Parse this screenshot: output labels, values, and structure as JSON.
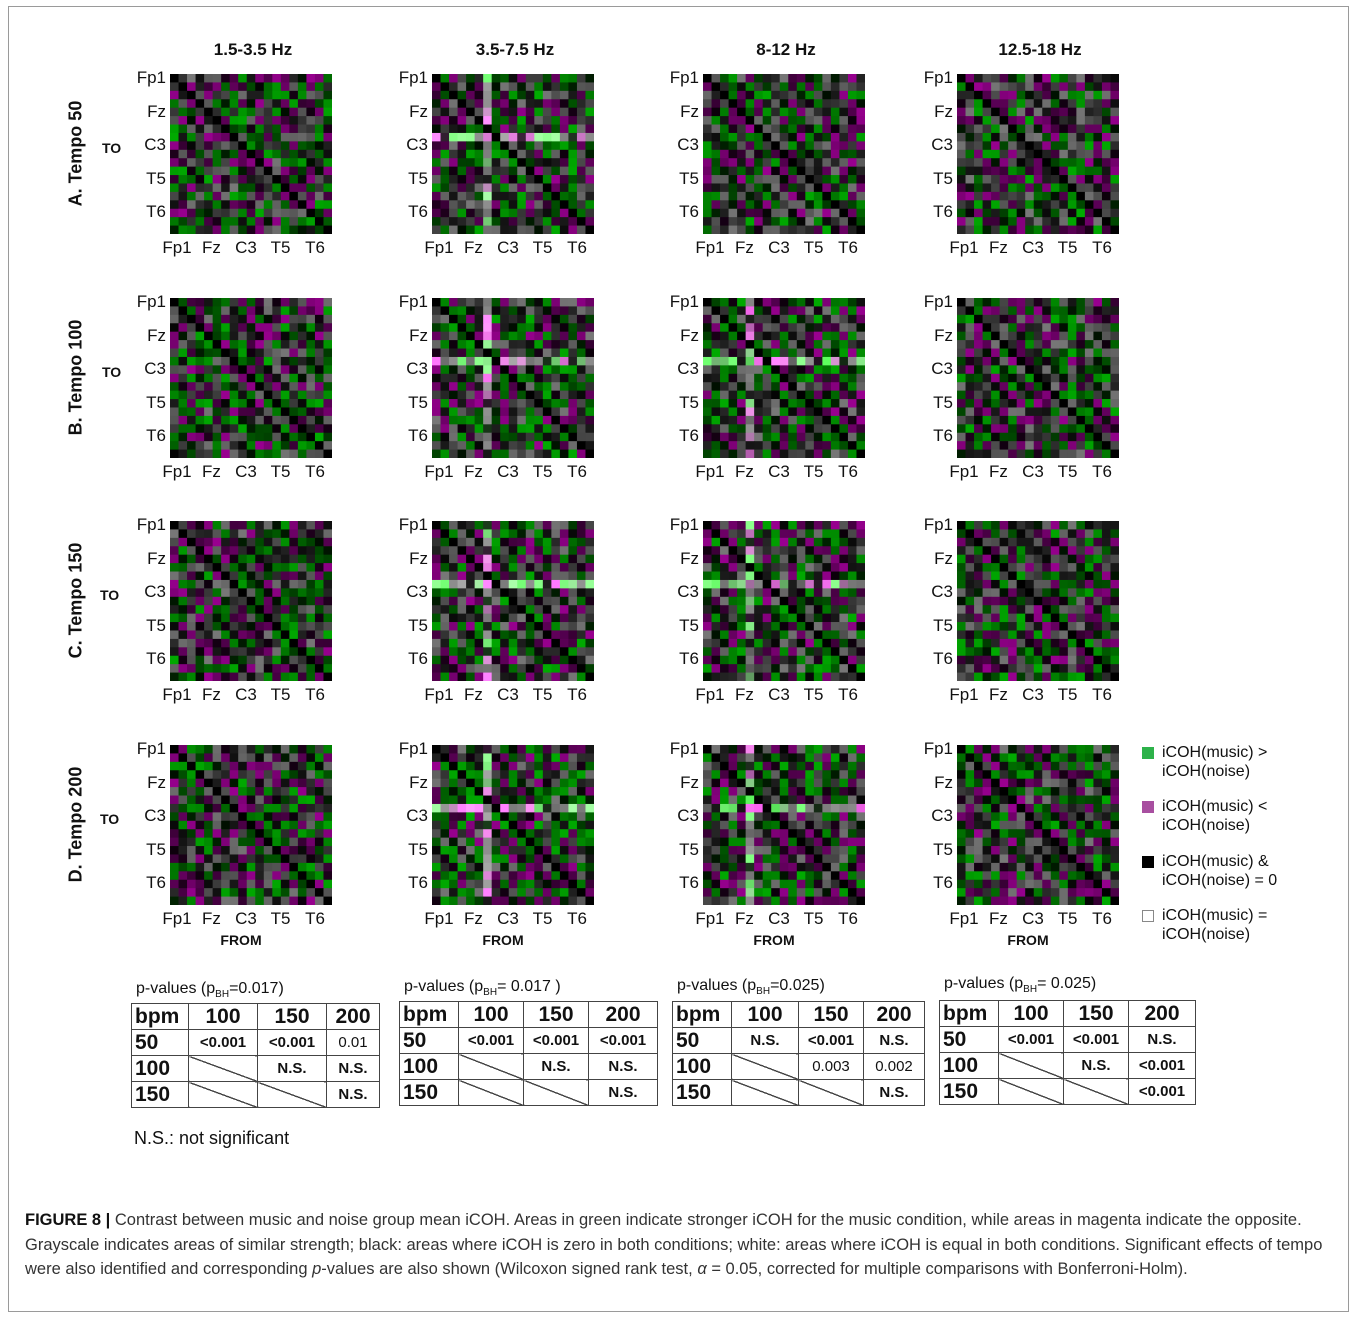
{
  "columns": [
    "1.5-3.5 Hz",
    "3.5-7.5 Hz",
    "8-12 Hz",
    "12.5-18 Hz"
  ],
  "rows": [
    "A. Tempo 50",
    "B. Tempo 100",
    "C. Tempo 150",
    "D. Tempo 200"
  ],
  "axis": {
    "to_label": "TO",
    "from_label": "FROM",
    "ticks": [
      "Fp1",
      "Fz",
      "C3",
      "T5",
      "T6"
    ]
  },
  "legend": [
    {
      "text": "iCOH(music) > iCOH(noise)",
      "color": "#2db24a",
      "border": "#2db24a"
    },
    {
      "text": "iCOH(music) < iCOH(noise)",
      "color": "#a84fa0",
      "border": "#a84fa0"
    },
    {
      "text": "iCOH(music) & iCOH(noise) = 0",
      "color": "#000000",
      "border": "#000000"
    },
    {
      "text": "iCOH(music) = iCOH(noise)",
      "color": "#ffffff",
      "border": "#888888"
    }
  ],
  "pvalue_tables": [
    {
      "title_prefix": "p-values (p",
      "title_sub": "BH",
      "title_suffix": "=0.017)",
      "header": [
        "bpm",
        "100",
        "150",
        "200"
      ],
      "rows": [
        {
          "label": "50",
          "cells": [
            "<0.001",
            "<0.001",
            "0.01"
          ]
        },
        {
          "label": "100",
          "cells": [
            "",
            "N.S.",
            "N.S."
          ]
        },
        {
          "label": "150",
          "cells": [
            "",
            "",
            "N.S."
          ]
        }
      ]
    },
    {
      "title_prefix": "p-values (p",
      "title_sub": "BH",
      "title_suffix": "= 0.017 )",
      "header": [
        "bpm",
        "100",
        "150",
        "200"
      ],
      "rows": [
        {
          "label": "50",
          "cells": [
            "<0.001",
            "<0.001",
            "<0.001"
          ]
        },
        {
          "label": "100",
          "cells": [
            "",
            "N.S.",
            "N.S."
          ]
        },
        {
          "label": "150",
          "cells": [
            "",
            "",
            "N.S."
          ]
        }
      ]
    },
    {
      "title_prefix": "p-values (p",
      "title_sub": "BH",
      "title_suffix": "=0.025)",
      "header": [
        "bpm",
        "100",
        "150",
        "200"
      ],
      "rows": [
        {
          "label": "50",
          "cells": [
            "N.S.",
            "<0.001",
            "N.S."
          ]
        },
        {
          "label": "100",
          "cells": [
            "",
            "0.003",
            "0.002"
          ]
        },
        {
          "label": "150",
          "cells": [
            "",
            "",
            "N.S."
          ]
        }
      ]
    },
    {
      "title_prefix": "p-values (p",
      "title_sub": "BH",
      "title_suffix": "= 0.025)",
      "header": [
        "bpm",
        "100",
        "150",
        "200"
      ],
      "rows": [
        {
          "label": "50",
          "cells": [
            "<0.001",
            "<0.001",
            "N.S."
          ]
        },
        {
          "label": "100",
          "cells": [
            "",
            "N.S.",
            "<0.001"
          ]
        },
        {
          "label": "150",
          "cells": [
            "",
            "",
            "<0.001"
          ]
        }
      ]
    }
  ],
  "ns_note": "N.S.: not significant",
  "caption": {
    "label": "FIGURE 8 |",
    "text_1": " Contrast between music and noise group mean iCOH. Areas in green indicate stronger iCOH for the music condition, while areas in magenta indicate the opposite. Grayscale indicates areas of similar strength; black: areas where iCOH is zero in both conditions; white: areas where iCOH is equal in both conditions. Significant effects of tempo were also identified and corresponding ",
    "p_italic": "p",
    "text_2": "-values are also shown (Wilcoxon signed rank test, ",
    "alpha": "α",
    "text_3": " = 0.05, corrected for multiple comparisons with Bonferroni-Holm)."
  }
}
